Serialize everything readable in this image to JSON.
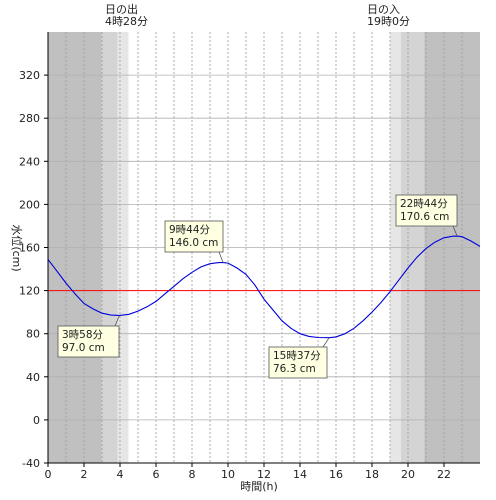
{
  "chart_data": {
    "type": "line",
    "title": "",
    "xlabel": "時間(h)",
    "ylabel": "水位(cm)",
    "xlim": [
      0,
      24
    ],
    "ylim": [
      -40,
      360
    ],
    "x_ticks": [
      0,
      2,
      4,
      6,
      8,
      10,
      12,
      14,
      16,
      18,
      20,
      22
    ],
    "y_ticks": [
      -40,
      0,
      40,
      80,
      120,
      160,
      200,
      240,
      280,
      320
    ],
    "grid": true,
    "reference_line": {
      "value": 120,
      "color": "#ff0000"
    },
    "sunrise": {
      "title": "日の出",
      "time": "4時28分",
      "hour": 4.47
    },
    "sunset": {
      "title": "日の入",
      "time": "19時0分",
      "hour": 19.0
    },
    "series": [
      {
        "color": "#0000dd",
        "x": [
          0,
          0.5,
          1,
          1.5,
          2,
          2.5,
          3,
          3.5,
          3.97,
          4.5,
          5,
          5.5,
          6,
          6.5,
          7,
          7.5,
          8,
          8.5,
          9,
          9.5,
          9.73,
          10,
          10.5,
          11,
          11.5,
          12,
          12.5,
          13,
          13.5,
          14,
          14.5,
          15,
          15.62,
          16,
          16.5,
          17,
          17.5,
          18,
          18.5,
          19,
          19.5,
          20,
          20.5,
          21,
          21.5,
          22,
          22.5,
          22.73,
          23,
          23.5,
          24
        ],
        "y": [
          149,
          138,
          127,
          117,
          108,
          103,
          99,
          97.3,
          97.0,
          98,
          101,
          105,
          110,
          117,
          124,
          131,
          137,
          142,
          145,
          146,
          146,
          145.5,
          141,
          135,
          125,
          112,
          102,
          92,
          85,
          80,
          77.5,
          76.5,
          76.3,
          77,
          80,
          85,
          92,
          100,
          109,
          119,
          130,
          141,
          151,
          159,
          165,
          169,
          170.5,
          170.6,
          170,
          166,
          161
        ]
      }
    ],
    "annotations": [
      {
        "time": "3時58分",
        "value": "97.0 cm",
        "x": 3.97,
        "y": 97.0
      },
      {
        "time": "9時44分",
        "value": "146.0 cm",
        "x": 9.73,
        "y": 146.0
      },
      {
        "time": "15時37分",
        "value": "76.3 cm",
        "x": 15.62,
        "y": 76.3
      },
      {
        "time": "22時44分",
        "value": "170.6 cm",
        "x": 22.73,
        "y": 170.6
      }
    ]
  }
}
